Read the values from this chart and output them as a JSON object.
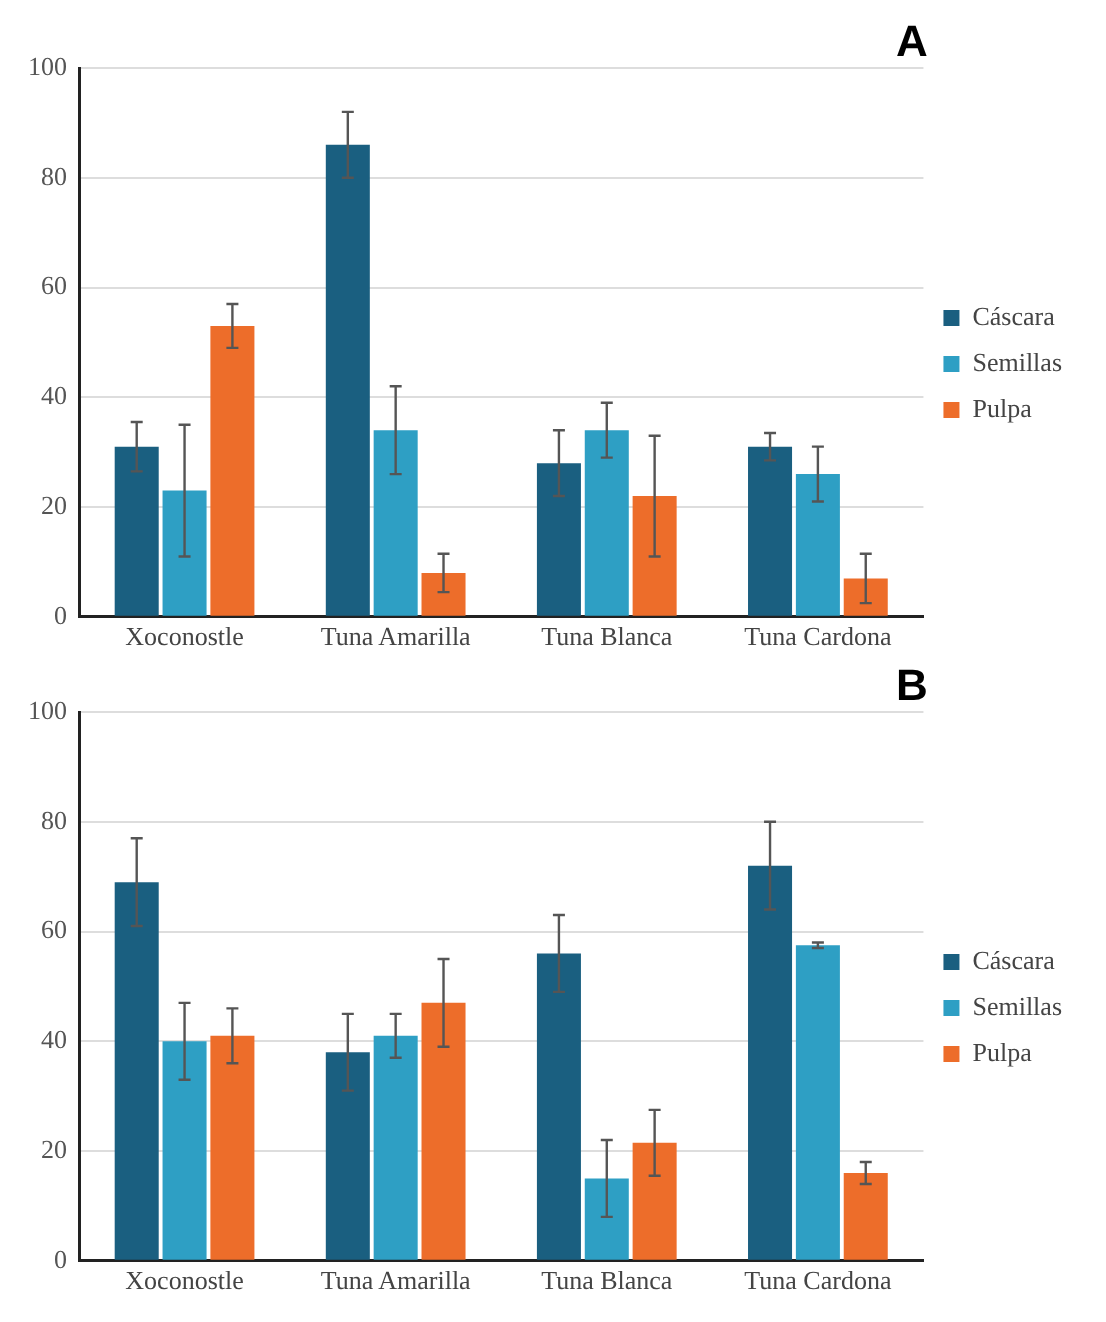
{
  "chart_data": [
    {
      "type": "bar",
      "title": "A",
      "categories": [
        "Xoconostle",
        "Tuna Amarilla",
        "Tuna Blanca",
        "Tuna Cardona"
      ],
      "ylim": [
        0,
        100
      ],
      "yticks": [
        0,
        20,
        40,
        60,
        80,
        100
      ],
      "grid": "y",
      "legend": "right",
      "series": [
        {
          "name": "Cáscara",
          "color": "#1a5f80",
          "values": [
            31,
            86,
            28,
            31
          ],
          "errors": [
            4.5,
            6,
            6,
            2.5
          ]
        },
        {
          "name": "Semillas",
          "color": "#2e9fc4",
          "values": [
            23,
            34,
            34,
            26
          ],
          "errors": [
            12,
            8,
            5,
            5
          ]
        },
        {
          "name": "Pulpa",
          "color": "#ed6d2a",
          "values": [
            53,
            8,
            22,
            7
          ],
          "errors": [
            4,
            3.5,
            11,
            4.5
          ]
        }
      ]
    },
    {
      "type": "bar",
      "title": "B",
      "categories": [
        "Xoconostle",
        "Tuna Amarilla",
        "Tuna Blanca",
        "Tuna Cardona"
      ],
      "ylim": [
        0,
        100
      ],
      "yticks": [
        0,
        20,
        40,
        60,
        80,
        100
      ],
      "grid": "y",
      "legend": "right",
      "series": [
        {
          "name": "Cáscara",
          "color": "#1a5f80",
          "values": [
            69,
            38,
            56,
            72
          ],
          "errors": [
            8,
            7,
            7,
            8
          ]
        },
        {
          "name": "Semillas",
          "color": "#2e9fc4",
          "values": [
            40,
            41,
            15,
            57.5
          ],
          "errors": [
            7,
            4,
            7,
            0.5
          ]
        },
        {
          "name": "Pulpa",
          "color": "#ed6d2a",
          "values": [
            41,
            47,
            21.5,
            16
          ],
          "errors": [
            5,
            8,
            6,
            2
          ]
        }
      ]
    }
  ]
}
